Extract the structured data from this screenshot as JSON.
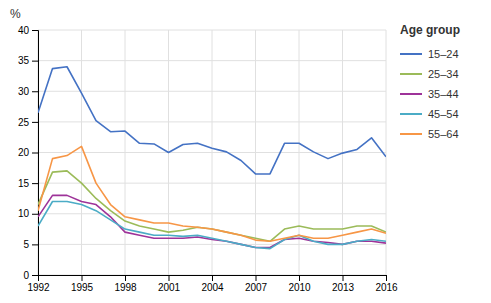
{
  "chart_data": {
    "type": "line",
    "ylabel": "%",
    "legend_title": "Age group",
    "x": [
      1992,
      1993,
      1994,
      1995,
      1996,
      1997,
      1998,
      1999,
      2000,
      2001,
      2002,
      2003,
      2004,
      2005,
      2006,
      2007,
      2008,
      2009,
      2010,
      2011,
      2012,
      2013,
      2014,
      2015,
      2016
    ],
    "series": [
      {
        "name": "15–24",
        "color": "#4472C4",
        "values": [
          26.5,
          33.7,
          34.0,
          29.7,
          25.2,
          23.4,
          23.5,
          21.5,
          21.4,
          20.0,
          21.3,
          21.5,
          20.7,
          20.1,
          18.7,
          16.5,
          16.5,
          21.5,
          21.5,
          20.1,
          19.0,
          19.9,
          20.5,
          22.4,
          19.3
        ]
      },
      {
        "name": "25–34",
        "color": "#9BBB59",
        "values": [
          11.5,
          16.8,
          17.0,
          15.0,
          12.5,
          10.5,
          8.8,
          8.0,
          7.5,
          7.0,
          7.3,
          7.8,
          7.5,
          7.0,
          6.5,
          6.0,
          5.5,
          7.5,
          8.0,
          7.5,
          7.5,
          7.5,
          8.0,
          8.0,
          7.0
        ]
      },
      {
        "name": "35–44",
        "color": "#9E3399",
        "values": [
          9.5,
          13.0,
          13.0,
          12.0,
          11.5,
          9.5,
          7.0,
          6.5,
          6.0,
          6.0,
          6.0,
          6.2,
          5.8,
          5.5,
          5.0,
          4.5,
          4.5,
          5.8,
          6.0,
          5.5,
          5.3,
          5.0,
          5.5,
          5.5,
          5.2
        ]
      },
      {
        "name": "45–54",
        "color": "#4BACC6",
        "values": [
          8.0,
          12.0,
          12.0,
          11.5,
          10.5,
          9.0,
          7.5,
          7.0,
          6.5,
          6.5,
          6.3,
          6.5,
          6.0,
          5.5,
          5.0,
          4.5,
          4.3,
          5.8,
          6.5,
          5.5,
          5.0,
          5.0,
          5.5,
          5.8,
          5.5
        ]
      },
      {
        "name": "55–64",
        "color": "#F79646",
        "values": [
          10.5,
          19.0,
          19.5,
          21.0,
          15.0,
          11.5,
          9.5,
          9.0,
          8.5,
          8.5,
          8.0,
          7.8,
          7.5,
          7.0,
          6.5,
          5.7,
          5.5,
          6.0,
          6.5,
          6.0,
          6.0,
          6.5,
          7.0,
          7.5,
          6.8
        ]
      }
    ],
    "xlim": [
      1992,
      2016
    ],
    "xticks": [
      1992,
      1995,
      1998,
      2001,
      2004,
      2007,
      2010,
      2013,
      2016
    ],
    "ylim": [
      0,
      40
    ],
    "yticks": [
      0,
      5,
      10,
      15,
      20,
      25,
      30,
      35,
      40
    ],
    "grid": true,
    "legend": "right"
  }
}
